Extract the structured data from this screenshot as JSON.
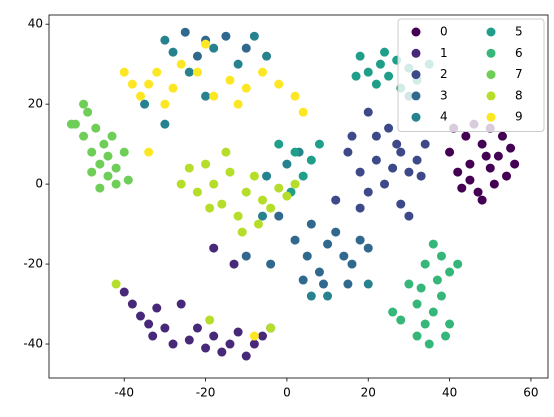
{
  "chart_data": {
    "type": "scatter",
    "xlim": [
      -58.5,
      64.2
    ],
    "ylim": [
      -48.5,
      42.3
    ],
    "xticks": [
      -40,
      -20,
      0,
      20,
      40,
      60
    ],
    "yticks": [
      -40,
      -20,
      0,
      20,
      40
    ],
    "legend": "upper right",
    "legend_columns": 2,
    "series": [
      {
        "name": "0",
        "color": "#440154",
        "x": [
          40,
          42,
          44,
          45,
          47,
          48,
          50,
          52,
          54,
          56,
          46,
          50,
          53,
          43,
          48,
          51,
          41,
          55,
          49,
          45
        ],
        "y": [
          8,
          3,
          12,
          5,
          -2,
          10,
          4,
          7,
          2,
          5,
          15,
          14,
          12,
          -1,
          -4,
          0,
          14,
          9,
          7,
          1
        ]
      },
      {
        "name": "1",
        "color": "#482878",
        "x": [
          -40,
          -38,
          -36,
          -34,
          -32,
          -33,
          -30,
          -28,
          -24,
          -20,
          -18,
          -16,
          -14,
          -12,
          -10,
          -8,
          -6,
          -4,
          -22,
          -26,
          -18,
          -13
        ],
        "y": [
          -27,
          -30,
          -33,
          -35,
          -31,
          -38,
          -36,
          -40,
          -39,
          -41,
          -38,
          -42,
          -40,
          -37,
          -43,
          -40,
          -38,
          -36,
          -36,
          -30,
          -16,
          -20
        ]
      },
      {
        "name": "2",
        "color": "#3e4989",
        "x": [
          15,
          18,
          20,
          22,
          24,
          26,
          28,
          30,
          32,
          34,
          25,
          22,
          28,
          30,
          16,
          20,
          33,
          27,
          12,
          18
        ],
        "y": [
          8,
          3,
          -2,
          6,
          0,
          4,
          8,
          3,
          6,
          10,
          14,
          12,
          -5,
          -8,
          12,
          18,
          2,
          10,
          -4,
          -6
        ]
      },
      {
        "name": "3",
        "color": "#31688e",
        "x": [
          2,
          5,
          8,
          10,
          12,
          14,
          16,
          18,
          20,
          6,
          4,
          -4,
          -10,
          -20,
          -25,
          -15,
          -10,
          -22,
          9,
          15,
          -2
        ],
        "y": [
          -14,
          -18,
          -22,
          -15,
          -12,
          -18,
          -20,
          -14,
          -16,
          -10,
          -24,
          -20,
          -18,
          36,
          38,
          37,
          34,
          32,
          -25,
          -25,
          -8
        ]
      },
      {
        "name": "4",
        "color": "#26828e",
        "x": [
          -30,
          -28,
          -18,
          -12,
          -8,
          -24,
          -5,
          -35,
          -30,
          0,
          3,
          -5,
          6,
          10,
          20,
          30,
          -20,
          -6
        ],
        "y": [
          36,
          33,
          34,
          30,
          37,
          28,
          32,
          20,
          15,
          5,
          8,
          2,
          -28,
          -28,
          -25,
          22,
          22,
          -8
        ]
      },
      {
        "name": "5",
        "color": "#1f9e89",
        "x": [
          18,
          20,
          23,
          25,
          27,
          30,
          32,
          28,
          24,
          22,
          35,
          17,
          2,
          4,
          6,
          -2,
          8,
          1
        ],
        "y": [
          32,
          28,
          30,
          27,
          31,
          29,
          26,
          24,
          33,
          25,
          30,
          27,
          8,
          2,
          6,
          10,
          10,
          -2
        ]
      },
      {
        "name": "6",
        "color": "#35b779",
        "x": [
          30,
          32,
          34,
          36,
          38,
          40,
          38,
          36,
          34,
          32,
          35,
          28,
          40,
          42,
          33,
          37,
          26,
          39
        ],
        "y": [
          -25,
          -30,
          -35,
          -32,
          -28,
          -22,
          -18,
          -15,
          -20,
          -38,
          -40,
          -34,
          -35,
          -20,
          -26,
          -24,
          -32,
          -38
        ]
      },
      {
        "name": "7",
        "color": "#6ece58",
        "x": [
          -52,
          -50,
          -48,
          -46,
          -44,
          -42,
          -45,
          -47,
          -49,
          -44,
          -42,
          -50,
          -40,
          -46,
          -48,
          -43,
          -53,
          -39
        ],
        "y": [
          15,
          12,
          8,
          5,
          2,
          0,
          10,
          14,
          18,
          7,
          4,
          20,
          8,
          -1,
          3,
          12,
          15,
          1
        ]
      },
      {
        "name": "8",
        "color": "#b5de2b",
        "x": [
          -22,
          -20,
          -18,
          -16,
          -14,
          -12,
          -10,
          -8,
          -6,
          -4,
          -2,
          0,
          2,
          -24,
          -15,
          -11,
          -26,
          -7,
          -19,
          -42,
          -4,
          -19
        ],
        "y": [
          -2,
          5,
          0,
          -5,
          3,
          -8,
          -2,
          2,
          -4,
          -6,
          -1,
          -3,
          0,
          4,
          8,
          -12,
          0,
          -10,
          -6,
          -25,
          -36,
          -34
        ]
      },
      {
        "name": "9",
        "color": "#fde725",
        "x": [
          -40,
          -36,
          -34,
          -30,
          -28,
          -26,
          -22,
          -20,
          -18,
          -14,
          -10,
          -6,
          -2,
          2,
          4,
          -32,
          -12,
          -38,
          -8,
          -34
        ],
        "y": [
          28,
          22,
          25,
          20,
          24,
          30,
          28,
          35,
          22,
          26,
          24,
          28,
          25,
          22,
          18,
          28,
          20,
          25,
          -38,
          8
        ]
      }
    ]
  }
}
